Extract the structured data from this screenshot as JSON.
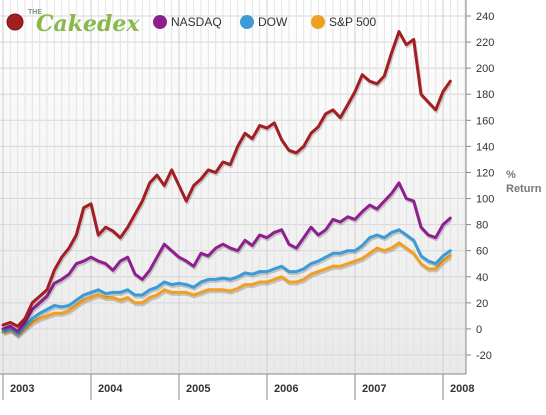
{
  "brand": {
    "the": "THE",
    "name": "Cakedex"
  },
  "chart_data": {
    "type": "line",
    "ylabel": "% Return",
    "ylabel_lines": [
      "%",
      "Return"
    ],
    "ylim": [
      -20,
      240
    ],
    "yticks": [
      240,
      220,
      200,
      180,
      160,
      140,
      120,
      100,
      80,
      60,
      40,
      20,
      0,
      -20
    ],
    "xlim": [
      2003.0,
      2008.17
    ],
    "x_ticks_years": [
      "2003",
      "2004",
      "2005",
      "2006",
      "2007",
      "2008"
    ],
    "grid": true,
    "legend_placement": "top-left",
    "x": [
      2003.0,
      2003.083,
      2003.167,
      2003.25,
      2003.333,
      2003.417,
      2003.5,
      2003.583,
      2003.667,
      2003.75,
      2003.833,
      2003.917,
      2004.0,
      2004.083,
      2004.167,
      2004.25,
      2004.333,
      2004.417,
      2004.5,
      2004.583,
      2004.667,
      2004.75,
      2004.833,
      2004.917,
      2005.0,
      2005.083,
      2005.167,
      2005.25,
      2005.333,
      2005.417,
      2005.5,
      2005.583,
      2005.667,
      2005.75,
      2005.833,
      2005.917,
      2006.0,
      2006.083,
      2006.167,
      2006.25,
      2006.333,
      2006.417,
      2006.5,
      2006.583,
      2006.667,
      2006.75,
      2006.833,
      2006.917,
      2007.0,
      2007.083,
      2007.167,
      2007.25,
      2007.333,
      2007.417,
      2007.5,
      2007.583,
      2007.667,
      2007.75,
      2007.833,
      2007.917,
      2008.0,
      2008.083
    ],
    "series": [
      {
        "name": "Cakedex",
        "color": "#a31e22",
        "values": [
          3,
          5,
          2,
          8,
          20,
          25,
          30,
          45,
          55,
          62,
          72,
          93,
          96,
          72,
          78,
          75,
          70,
          78,
          88,
          98,
          112,
          118,
          110,
          122,
          110,
          98,
          110,
          115,
          122,
          120,
          128,
          126,
          140,
          150,
          146,
          156,
          154,
          158,
          145,
          137,
          135,
          140,
          150,
          155,
          165,
          168,
          162,
          172,
          182,
          195,
          190,
          188,
          194,
          212,
          228,
          218,
          222,
          180,
          174,
          168,
          182,
          190
        ]
      },
      {
        "name": "NASDAQ",
        "color": "#8e1f8e",
        "values": [
          0,
          2,
          -2,
          5,
          15,
          20,
          25,
          35,
          38,
          42,
          50,
          52,
          55,
          52,
          50,
          45,
          52,
          55,
          42,
          38,
          45,
          55,
          65,
          60,
          55,
          52,
          48,
          58,
          56,
          62,
          65,
          62,
          60,
          68,
          64,
          72,
          70,
          74,
          76,
          65,
          62,
          70,
          78,
          72,
          76,
          84,
          82,
          86,
          84,
          90,
          95,
          92,
          98,
          104,
          112,
          100,
          98,
          78,
          72,
          70,
          80,
          85
        ]
      },
      {
        "name": "DOW",
        "color": "#3a9bd5",
        "values": [
          -2,
          0,
          -4,
          2,
          8,
          12,
          15,
          18,
          17,
          18,
          22,
          26,
          28,
          30,
          27,
          28,
          28,
          30,
          26,
          26,
          30,
          32,
          36,
          34,
          35,
          34,
          32,
          36,
          38,
          38,
          39,
          38,
          40,
          43,
          42,
          44,
          44,
          46,
          48,
          44,
          44,
          46,
          50,
          52,
          55,
          58,
          58,
          60,
          60,
          64,
          70,
          72,
          70,
          74,
          76,
          72,
          68,
          56,
          52,
          50,
          56,
          60
        ]
      },
      {
        "name": "S&P 500",
        "color": "#f0a020",
        "values": [
          -3,
          -1,
          -5,
          0,
          5,
          8,
          10,
          12,
          12,
          14,
          18,
          22,
          24,
          26,
          24,
          24,
          22,
          24,
          20,
          20,
          24,
          26,
          30,
          28,
          28,
          28,
          26,
          28,
          30,
          30,
          30,
          29,
          31,
          34,
          34,
          36,
          36,
          38,
          40,
          36,
          36,
          38,
          42,
          44,
          46,
          48,
          48,
          50,
          52,
          54,
          58,
          62,
          60,
          62,
          66,
          62,
          58,
          50,
          46,
          46,
          52,
          56
        ]
      }
    ]
  }
}
